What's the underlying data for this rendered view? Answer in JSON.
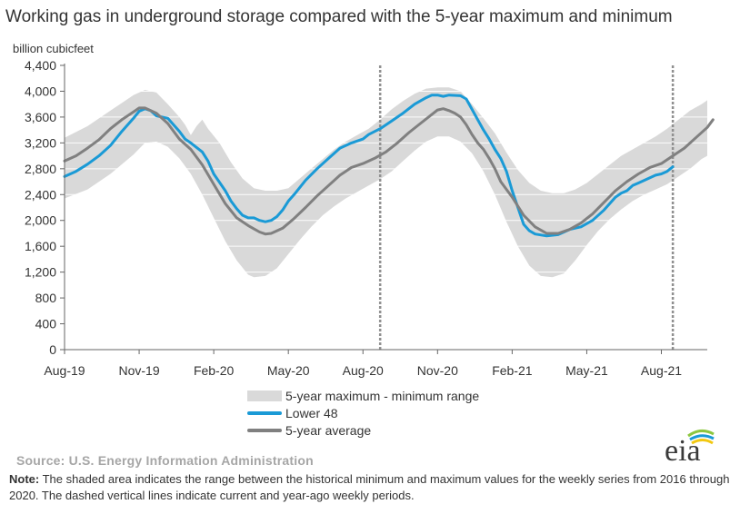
{
  "title": "Working gas in underground  storage compared with the 5-year maximum and minimum",
  "unit_label": "billion cubicfeet",
  "legend": {
    "range": "5-year maximum - minimum range",
    "lower48": "Lower 48",
    "avg": "5-year average"
  },
  "source": "Source:  U.S. Energy Information Administration",
  "note_label": "Note:",
  "note_text": " The shaded area indicates the range between the historical minimum and maximum values for the weekly series from 2016 through 2020. The dashed vertical lines indicate current and year-ago weekly periods.",
  "logo_text": "eia",
  "colors": {
    "range": "#d9d9d9",
    "lower48": "#1a9ad6",
    "avg": "#808080",
    "logo_arc_green": "#8dc63f",
    "logo_arc_blue": "#1a9ad6",
    "logo_arc_yellow": "#f2c811"
  },
  "chart_data": {
    "type": "area",
    "title": "Working gas in underground  storage compared with the 5-year maximum and minimum",
    "ylabel": "billion cubicfeet",
    "ylim": [
      0,
      4400
    ],
    "yticks": [
      0,
      400,
      800,
      1200,
      1600,
      2000,
      2400,
      2800,
      3200,
      3600,
      4000,
      4400
    ],
    "xlim": [
      0,
      112
    ],
    "xticks": [
      {
        "week": 0,
        "label": "Aug-19"
      },
      {
        "week": 13,
        "label": "Nov-19"
      },
      {
        "week": 26,
        "label": "Feb-20"
      },
      {
        "week": 39,
        "label": "May-20"
      },
      {
        "week": 52,
        "label": "Aug-20"
      },
      {
        "week": 65,
        "label": "Nov-20"
      },
      {
        "week": 78,
        "label": "Feb-21"
      },
      {
        "week": 91,
        "label": "May-21"
      },
      {
        "week": 104,
        "label": "Aug-21"
      }
    ],
    "dashed_vlines": [
      55,
      106
    ],
    "grid": "horizontal",
    "legend_position": "bottom",
    "range_max": [
      [
        0,
        3280
      ],
      [
        4,
        3460
      ],
      [
        8,
        3700
      ],
      [
        12,
        3940
      ],
      [
        14,
        4020
      ],
      [
        16,
        3980
      ],
      [
        18,
        3800
      ],
      [
        20,
        3600
      ],
      [
        21,
        3480
      ],
      [
        22,
        3320
      ],
      [
        23,
        3460
      ],
      [
        24,
        3560
      ],
      [
        25,
        3420
      ],
      [
        27,
        3200
      ],
      [
        29,
        2900
      ],
      [
        31,
        2650
      ],
      [
        33,
        2500
      ],
      [
        35,
        2460
      ],
      [
        37,
        2460
      ],
      [
        39,
        2500
      ],
      [
        41,
        2650
      ],
      [
        43,
        2800
      ],
      [
        45,
        2950
      ],
      [
        47,
        3100
      ],
      [
        49,
        3220
      ],
      [
        51,
        3320
      ],
      [
        53,
        3420
      ],
      [
        55,
        3560
      ],
      [
        57,
        3720
      ],
      [
        59,
        3850
      ],
      [
        61,
        3960
      ],
      [
        63,
        4040
      ],
      [
        65,
        4060
      ],
      [
        67,
        4060
      ],
      [
        69,
        4000
      ],
      [
        71,
        3800
      ],
      [
        73,
        3580
      ],
      [
        75,
        3350
      ],
      [
        77,
        3050
      ],
      [
        79,
        2780
      ],
      [
        81,
        2580
      ],
      [
        83,
        2460
      ],
      [
        85,
        2420
      ],
      [
        87,
        2420
      ],
      [
        89,
        2480
      ],
      [
        91,
        2580
      ],
      [
        93,
        2720
      ],
      [
        95,
        2860
      ],
      [
        97,
        3000
      ],
      [
        99,
        3100
      ],
      [
        101,
        3200
      ],
      [
        103,
        3300
      ],
      [
        105,
        3420
      ],
      [
        107,
        3560
      ],
      [
        109,
        3700
      ],
      [
        111,
        3800
      ],
      [
        112,
        3860
      ]
    ],
    "range_min": [
      [
        0,
        2340
      ],
      [
        4,
        2480
      ],
      [
        8,
        2720
      ],
      [
        12,
        3020
      ],
      [
        14,
        3200
      ],
      [
        16,
        3220
      ],
      [
        18,
        3140
      ],
      [
        20,
        2960
      ],
      [
        22,
        2720
      ],
      [
        24,
        2400
      ],
      [
        26,
        2040
      ],
      [
        28,
        1680
      ],
      [
        30,
        1380
      ],
      [
        32,
        1160
      ],
      [
        33,
        1120
      ],
      [
        35,
        1140
      ],
      [
        37,
        1260
      ],
      [
        39,
        1480
      ],
      [
        41,
        1700
      ],
      [
        43,
        1900
      ],
      [
        45,
        2080
      ],
      [
        47,
        2220
      ],
      [
        49,
        2340
      ],
      [
        51,
        2440
      ],
      [
        53,
        2540
      ],
      [
        55,
        2640
      ],
      [
        57,
        2760
      ],
      [
        59,
        2920
      ],
      [
        61,
        3080
      ],
      [
        63,
        3220
      ],
      [
        65,
        3300
      ],
      [
        67,
        3300
      ],
      [
        69,
        3220
      ],
      [
        71,
        3040
      ],
      [
        73,
        2760
      ],
      [
        75,
        2400
      ],
      [
        77,
        1980
      ],
      [
        79,
        1600
      ],
      [
        81,
        1300
      ],
      [
        83,
        1140
      ],
      [
        85,
        1120
      ],
      [
        87,
        1180
      ],
      [
        89,
        1380
      ],
      [
        91,
        1620
      ],
      [
        93,
        1840
      ],
      [
        95,
        2020
      ],
      [
        97,
        2170
      ],
      [
        99,
        2300
      ],
      [
        101,
        2400
      ],
      [
        103,
        2480
      ],
      [
        105,
        2560
      ],
      [
        107,
        2680
      ],
      [
        109,
        2800
      ],
      [
        111,
        2950
      ],
      [
        112,
        3000
      ]
    ],
    "series": [
      {
        "name": "Lower 48",
        "color": "#1a9ad6",
        "points": [
          [
            0,
            2680
          ],
          [
            2,
            2760
          ],
          [
            4,
            2870
          ],
          [
            6,
            3000
          ],
          [
            8,
            3160
          ],
          [
            10,
            3380
          ],
          [
            12,
            3580
          ],
          [
            13,
            3690
          ],
          [
            14,
            3730
          ],
          [
            15,
            3700
          ],
          [
            16,
            3620
          ],
          [
            18,
            3580
          ],
          [
            20,
            3380
          ],
          [
            21,
            3260
          ],
          [
            22,
            3200
          ],
          [
            24,
            3060
          ],
          [
            25,
            2920
          ],
          [
            26,
            2720
          ],
          [
            28,
            2460
          ],
          [
            29,
            2300
          ],
          [
            30,
            2180
          ],
          [
            31,
            2080
          ],
          [
            32,
            2040
          ],
          [
            33,
            2040
          ],
          [
            34,
            2000
          ],
          [
            35,
            1980
          ],
          [
            36,
            2000
          ],
          [
            37,
            2060
          ],
          [
            38,
            2160
          ],
          [
            39,
            2300
          ],
          [
            40,
            2400
          ],
          [
            42,
            2620
          ],
          [
            44,
            2800
          ],
          [
            46,
            2960
          ],
          [
            48,
            3120
          ],
          [
            50,
            3200
          ],
          [
            52,
            3260
          ],
          [
            53,
            3330
          ],
          [
            55,
            3420
          ],
          [
            57,
            3540
          ],
          [
            59,
            3660
          ],
          [
            61,
            3800
          ],
          [
            63,
            3900
          ],
          [
            64,
            3940
          ],
          [
            65,
            3940
          ],
          [
            66,
            3920
          ],
          [
            67,
            3940
          ],
          [
            69,
            3930
          ],
          [
            70,
            3880
          ],
          [
            71,
            3720
          ],
          [
            72,
            3560
          ],
          [
            73,
            3400
          ],
          [
            74,
            3260
          ],
          [
            75,
            3100
          ],
          [
            76,
            2960
          ],
          [
            77,
            2760
          ],
          [
            78,
            2460
          ],
          [
            79,
            2200
          ],
          [
            80,
            1940
          ],
          [
            81,
            1840
          ],
          [
            82,
            1790
          ],
          [
            84,
            1760
          ],
          [
            86,
            1780
          ],
          [
            88,
            1860
          ],
          [
            90,
            1900
          ],
          [
            92,
            2000
          ],
          [
            94,
            2160
          ],
          [
            96,
            2360
          ],
          [
            97,
            2420
          ],
          [
            98,
            2460
          ],
          [
            99,
            2540
          ],
          [
            100,
            2580
          ],
          [
            101,
            2620
          ],
          [
            102,
            2660
          ],
          [
            103,
            2700
          ],
          [
            104,
            2720
          ],
          [
            105,
            2760
          ],
          [
            106,
            2830
          ]
        ]
      },
      {
        "name": "5-year average",
        "color": "#808080",
        "points": [
          [
            0,
            2920
          ],
          [
            2,
            3000
          ],
          [
            4,
            3120
          ],
          [
            6,
            3250
          ],
          [
            8,
            3420
          ],
          [
            10,
            3560
          ],
          [
            12,
            3680
          ],
          [
            13,
            3740
          ],
          [
            14,
            3740
          ],
          [
            15,
            3700
          ],
          [
            16,
            3660
          ],
          [
            18,
            3500
          ],
          [
            20,
            3260
          ],
          [
            22,
            3100
          ],
          [
            24,
            2860
          ],
          [
            26,
            2560
          ],
          [
            28,
            2260
          ],
          [
            30,
            2040
          ],
          [
            32,
            1920
          ],
          [
            34,
            1820
          ],
          [
            35,
            1790
          ],
          [
            36,
            1800
          ],
          [
            38,
            1880
          ],
          [
            40,
            2030
          ],
          [
            42,
            2200
          ],
          [
            44,
            2380
          ],
          [
            46,
            2540
          ],
          [
            48,
            2700
          ],
          [
            50,
            2820
          ],
          [
            52,
            2880
          ],
          [
            54,
            2960
          ],
          [
            56,
            3060
          ],
          [
            58,
            3200
          ],
          [
            60,
            3360
          ],
          [
            62,
            3500
          ],
          [
            64,
            3640
          ],
          [
            65,
            3710
          ],
          [
            66,
            3730
          ],
          [
            67,
            3700
          ],
          [
            68,
            3660
          ],
          [
            69,
            3600
          ],
          [
            70,
            3480
          ],
          [
            71,
            3330
          ],
          [
            72,
            3200
          ],
          [
            73,
            3100
          ],
          [
            74,
            2960
          ],
          [
            75,
            2800
          ],
          [
            76,
            2600
          ],
          [
            78,
            2360
          ],
          [
            80,
            2080
          ],
          [
            82,
            1900
          ],
          [
            84,
            1800
          ],
          [
            86,
            1800
          ],
          [
            88,
            1860
          ],
          [
            90,
            1960
          ],
          [
            92,
            2100
          ],
          [
            94,
            2280
          ],
          [
            96,
            2460
          ],
          [
            98,
            2600
          ],
          [
            100,
            2720
          ],
          [
            102,
            2820
          ],
          [
            104,
            2880
          ],
          [
            106,
            3000
          ],
          [
            108,
            3120
          ],
          [
            110,
            3280
          ],
          [
            112,
            3440
          ],
          [
            113,
            3560
          ]
        ]
      }
    ]
  }
}
